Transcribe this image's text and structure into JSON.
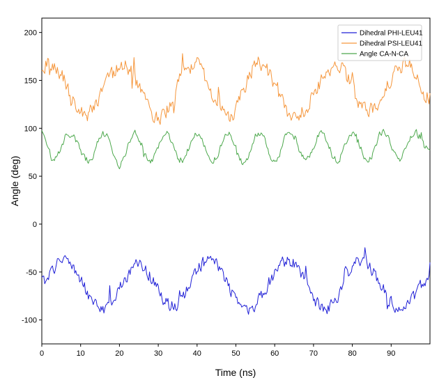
{
  "chart_data": {
    "type": "line",
    "title": "",
    "xlabel": "Time (ns)",
    "ylabel": "Angle (deg)",
    "xlim": [
      0,
      100
    ],
    "ylim": [
      -125,
      215
    ],
    "xticks": [
      0,
      10,
      20,
      30,
      40,
      50,
      60,
      70,
      80,
      90
    ],
    "yticks": [
      -100,
      -50,
      0,
      50,
      100,
      150,
      200
    ],
    "grid": false,
    "legend_position": "top-right",
    "sampling": {
      "x_start": 0,
      "x_end": 100,
      "step": 0.25
    },
    "series": [
      {
        "name": "Dihedral PHI-LEU41",
        "color": "#1f1fd6",
        "keypoints": [
          [
            0,
            -60
          ],
          [
            5.5,
            -37
          ],
          [
            15.5,
            -88
          ],
          [
            25,
            -43
          ],
          [
            33.5,
            -85
          ],
          [
            43,
            -38
          ],
          [
            53,
            -88
          ],
          [
            63.5,
            -38
          ],
          [
            73,
            -88
          ],
          [
            82,
            -40
          ],
          [
            93,
            -88
          ],
          [
            100,
            -55
          ]
        ],
        "noise_amplitude": 9
      },
      {
        "name": "Dihedral PSI-LEU41",
        "color": "#f5963c",
        "keypoints": [
          [
            0,
            165
          ],
          [
            2,
            168
          ],
          [
            11,
            118
          ],
          [
            21,
            165
          ],
          [
            30,
            112
          ],
          [
            39,
            168
          ],
          [
            48,
            112
          ],
          [
            56,
            168
          ],
          [
            65,
            112
          ],
          [
            76,
            166
          ],
          [
            84,
            118
          ],
          [
            94,
            168
          ],
          [
            100,
            132
          ]
        ],
        "noise_amplitude": 11
      },
      {
        "name": "Angle CA-N-CA",
        "color": "#4ca84c",
        "keypoints": [
          [
            0,
            98
          ],
          [
            3,
            67
          ],
          [
            7,
            94
          ],
          [
            12,
            67
          ],
          [
            16,
            94
          ],
          [
            20,
            63
          ],
          [
            24,
            93
          ],
          [
            28,
            67
          ],
          [
            32,
            94
          ],
          [
            36,
            67
          ],
          [
            40,
            95
          ],
          [
            44,
            64
          ],
          [
            48,
            95
          ],
          [
            52,
            63
          ],
          [
            56,
            96
          ],
          [
            60,
            67
          ],
          [
            64,
            97
          ],
          [
            68,
            67
          ],
          [
            72,
            96
          ],
          [
            76,
            66
          ],
          [
            80,
            96
          ],
          [
            84,
            67
          ],
          [
            88,
            97
          ],
          [
            92,
            67
          ],
          [
            96,
            96
          ],
          [
            100,
            76
          ]
        ],
        "noise_amplitude": 5
      }
    ]
  }
}
